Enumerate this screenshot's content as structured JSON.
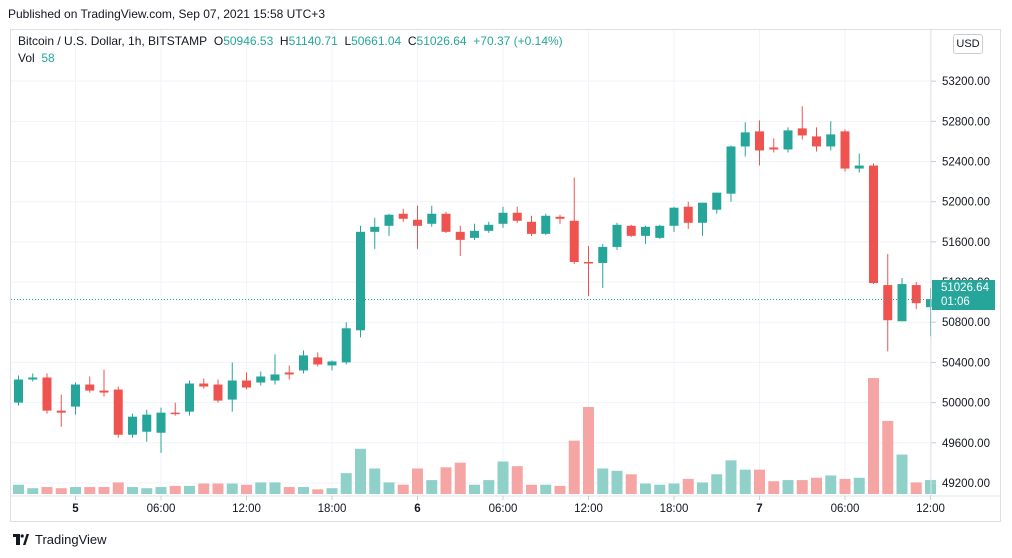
{
  "header": {
    "published": "Published on TradingView.com, Sep 07, 2021 15:58 UTC+3"
  },
  "legend": {
    "symbol": "Bitcoin / U.S. Dollar, 1h, BITSTAMP",
    "o_label": "O",
    "o_value": "50946.53",
    "h_label": "H",
    "h_value": "51140.71",
    "l_label": "L",
    "l_value": "50661.04",
    "c_label": "C",
    "c_value": "51026.64",
    "change": "+70.37 (+0.14%)",
    "vol_label": "Vol",
    "vol_value": "58"
  },
  "currency_button": "USD",
  "last_price": {
    "price": "51026.64",
    "countdown": "01:06"
  },
  "footer": {
    "brand": "TradingView",
    "logo_icon": "tradingview-logo-icon"
  },
  "colors": {
    "up": "#26a69a",
    "down": "#ef5350",
    "vol_up": "#8fd0c9",
    "vol_down": "#f5a5a3",
    "grid": "#f0f3fa"
  },
  "chart_data": {
    "type": "candlestick",
    "y_ticks": [
      "49200.00",
      "49600.00",
      "50000.00",
      "50400.00",
      "50800.00",
      "51200.00",
      "51600.00",
      "52000.00",
      "52400.00",
      "52800.00",
      "53200.00"
    ],
    "ylim": [
      49140,
      53540
    ],
    "x_ticks": [
      {
        "label": "5",
        "bar": 4
      },
      {
        "label": "06:00",
        "bar": 10
      },
      {
        "label": "12:00",
        "bar": 16
      },
      {
        "label": "18:00",
        "bar": 22
      },
      {
        "label": "6",
        "bar": 28
      },
      {
        "label": "06:00",
        "bar": 34
      },
      {
        "label": "12:00",
        "bar": 40
      },
      {
        "label": "18:00",
        "bar": 46
      },
      {
        "label": "7",
        "bar": 52
      },
      {
        "label": "06:00",
        "bar": 58
      },
      {
        "label": "12:00",
        "bar": 64
      }
    ],
    "last_price": 51026.64,
    "candles": [
      {
        "o": 50000,
        "h": 50270,
        "l": 49970,
        "c": 50230,
        "v": 0.08
      },
      {
        "o": 50230,
        "h": 50290,
        "l": 50210,
        "c": 50250,
        "v": 0.05
      },
      {
        "o": 50250,
        "h": 50290,
        "l": 49890,
        "c": 49920,
        "v": 0.06
      },
      {
        "o": 49920,
        "h": 50080,
        "l": 49760,
        "c": 49900,
        "v": 0.05
      },
      {
        "o": 49960,
        "h": 50200,
        "l": 49880,
        "c": 50180,
        "v": 0.06
      },
      {
        "o": 50180,
        "h": 50260,
        "l": 50100,
        "c": 50120,
        "v": 0.06
      },
      {
        "o": 50120,
        "h": 50330,
        "l": 50060,
        "c": 50100,
        "v": 0.06
      },
      {
        "o": 50130,
        "h": 50160,
        "l": 49650,
        "c": 49680,
        "v": 0.1
      },
      {
        "o": 49680,
        "h": 49890,
        "l": 49650,
        "c": 49860,
        "v": 0.06
      },
      {
        "o": 49710,
        "h": 49930,
        "l": 49610,
        "c": 49880,
        "v": 0.05
      },
      {
        "o": 49700,
        "h": 49950,
        "l": 49500,
        "c": 49900,
        "v": 0.06
      },
      {
        "o": 49900,
        "h": 50000,
        "l": 49870,
        "c": 49890,
        "v": 0.07
      },
      {
        "o": 49910,
        "h": 50220,
        "l": 49870,
        "c": 50190,
        "v": 0.07
      },
      {
        "o": 50190,
        "h": 50240,
        "l": 50140,
        "c": 50160,
        "v": 0.09
      },
      {
        "o": 50180,
        "h": 50230,
        "l": 50000,
        "c": 50020,
        "v": 0.09
      },
      {
        "o": 50030,
        "h": 50400,
        "l": 49910,
        "c": 50220,
        "v": 0.09
      },
      {
        "o": 50220,
        "h": 50300,
        "l": 50130,
        "c": 50150,
        "v": 0.08
      },
      {
        "o": 50200,
        "h": 50310,
        "l": 50170,
        "c": 50260,
        "v": 0.1
      },
      {
        "o": 50220,
        "h": 50480,
        "l": 50180,
        "c": 50280,
        "v": 0.1
      },
      {
        "o": 50300,
        "h": 50370,
        "l": 50230,
        "c": 50280,
        "v": 0.06
      },
      {
        "o": 50320,
        "h": 50520,
        "l": 50290,
        "c": 50470,
        "v": 0.06
      },
      {
        "o": 50450,
        "h": 50500,
        "l": 50360,
        "c": 50380,
        "v": 0.04
      },
      {
        "o": 50370,
        "h": 50420,
        "l": 50320,
        "c": 50410,
        "v": 0.05
      },
      {
        "o": 50400,
        "h": 50800,
        "l": 50380,
        "c": 50740,
        "v": 0.18
      },
      {
        "o": 50720,
        "h": 51760,
        "l": 50650,
        "c": 51700,
        "v": 0.39
      },
      {
        "o": 51700,
        "h": 51840,
        "l": 51530,
        "c": 51750,
        "v": 0.22
      },
      {
        "o": 51760,
        "h": 51880,
        "l": 51660,
        "c": 51870,
        "v": 0.1
      },
      {
        "o": 51880,
        "h": 51930,
        "l": 51800,
        "c": 51830,
        "v": 0.08
      },
      {
        "o": 51820,
        "h": 51960,
        "l": 51530,
        "c": 51760,
        "v": 0.22
      },
      {
        "o": 51780,
        "h": 51960,
        "l": 51750,
        "c": 51880,
        "v": 0.12
      },
      {
        "o": 51880,
        "h": 51900,
        "l": 51690,
        "c": 51700,
        "v": 0.23
      },
      {
        "o": 51700,
        "h": 51760,
        "l": 51460,
        "c": 51620,
        "v": 0.27
      },
      {
        "o": 51640,
        "h": 51780,
        "l": 51620,
        "c": 51710,
        "v": 0.08
      },
      {
        "o": 51710,
        "h": 51800,
        "l": 51690,
        "c": 51770,
        "v": 0.12
      },
      {
        "o": 51780,
        "h": 51950,
        "l": 51740,
        "c": 51890,
        "v": 0.28
      },
      {
        "o": 51890,
        "h": 51950,
        "l": 51790,
        "c": 51810,
        "v": 0.24
      },
      {
        "o": 51800,
        "h": 51860,
        "l": 51660,
        "c": 51680,
        "v": 0.08
      },
      {
        "o": 51680,
        "h": 51880,
        "l": 51670,
        "c": 51860,
        "v": 0.08
      },
      {
        "o": 51850,
        "h": 51870,
        "l": 51780,
        "c": 51830,
        "v": 0.07
      },
      {
        "o": 51810,
        "h": 52240,
        "l": 51380,
        "c": 51400,
        "v": 0.46
      },
      {
        "o": 51400,
        "h": 51560,
        "l": 51060,
        "c": 51390,
        "v": 0.75
      },
      {
        "o": 51390,
        "h": 51580,
        "l": 51140,
        "c": 51550,
        "v": 0.22
      },
      {
        "o": 51550,
        "h": 51790,
        "l": 51520,
        "c": 51770,
        "v": 0.2
      },
      {
        "o": 51760,
        "h": 51770,
        "l": 51650,
        "c": 51660,
        "v": 0.17
      },
      {
        "o": 51660,
        "h": 51760,
        "l": 51580,
        "c": 51750,
        "v": 0.09
      },
      {
        "o": 51640,
        "h": 51770,
        "l": 51630,
        "c": 51760,
        "v": 0.08
      },
      {
        "o": 51760,
        "h": 51950,
        "l": 51700,
        "c": 51940,
        "v": 0.09
      },
      {
        "o": 51950,
        "h": 52000,
        "l": 51730,
        "c": 51790,
        "v": 0.13
      },
      {
        "o": 51790,
        "h": 51990,
        "l": 51660,
        "c": 51990,
        "v": 0.1
      },
      {
        "o": 51920,
        "h": 52090,
        "l": 51880,
        "c": 52090,
        "v": 0.17
      },
      {
        "o": 52080,
        "h": 52560,
        "l": 52000,
        "c": 52550,
        "v": 0.29
      },
      {
        "o": 52550,
        "h": 52790,
        "l": 52450,
        "c": 52690,
        "v": 0.21
      },
      {
        "o": 52700,
        "h": 52810,
        "l": 52360,
        "c": 52510,
        "v": 0.21
      },
      {
        "o": 52540,
        "h": 52630,
        "l": 52490,
        "c": 52520,
        "v": 0.11
      },
      {
        "o": 52520,
        "h": 52740,
        "l": 52490,
        "c": 52710,
        "v": 0.12
      },
      {
        "o": 52730,
        "h": 52950,
        "l": 52620,
        "c": 52660,
        "v": 0.12
      },
      {
        "o": 52650,
        "h": 52740,
        "l": 52500,
        "c": 52550,
        "v": 0.14
      },
      {
        "o": 52550,
        "h": 52800,
        "l": 52510,
        "c": 52670,
        "v": 0.16
      },
      {
        "o": 52700,
        "h": 52720,
        "l": 52300,
        "c": 52330,
        "v": 0.13
      },
      {
        "o": 52330,
        "h": 52480,
        "l": 52290,
        "c": 52360,
        "v": 0.14
      },
      {
        "o": 52360,
        "h": 52380,
        "l": 51180,
        "c": 51190,
        "v": 1.0
      },
      {
        "o": 51170,
        "h": 51480,
        "l": 50510,
        "c": 50820,
        "v": 0.63
      },
      {
        "o": 50810,
        "h": 51240,
        "l": 50810,
        "c": 51180,
        "v": 0.34
      },
      {
        "o": 51170,
        "h": 51200,
        "l": 50930,
        "c": 50990,
        "v": 0.1
      },
      {
        "o": 50950,
        "h": 51140,
        "l": 50660,
        "c": 51030,
        "v": 0.12
      }
    ]
  }
}
